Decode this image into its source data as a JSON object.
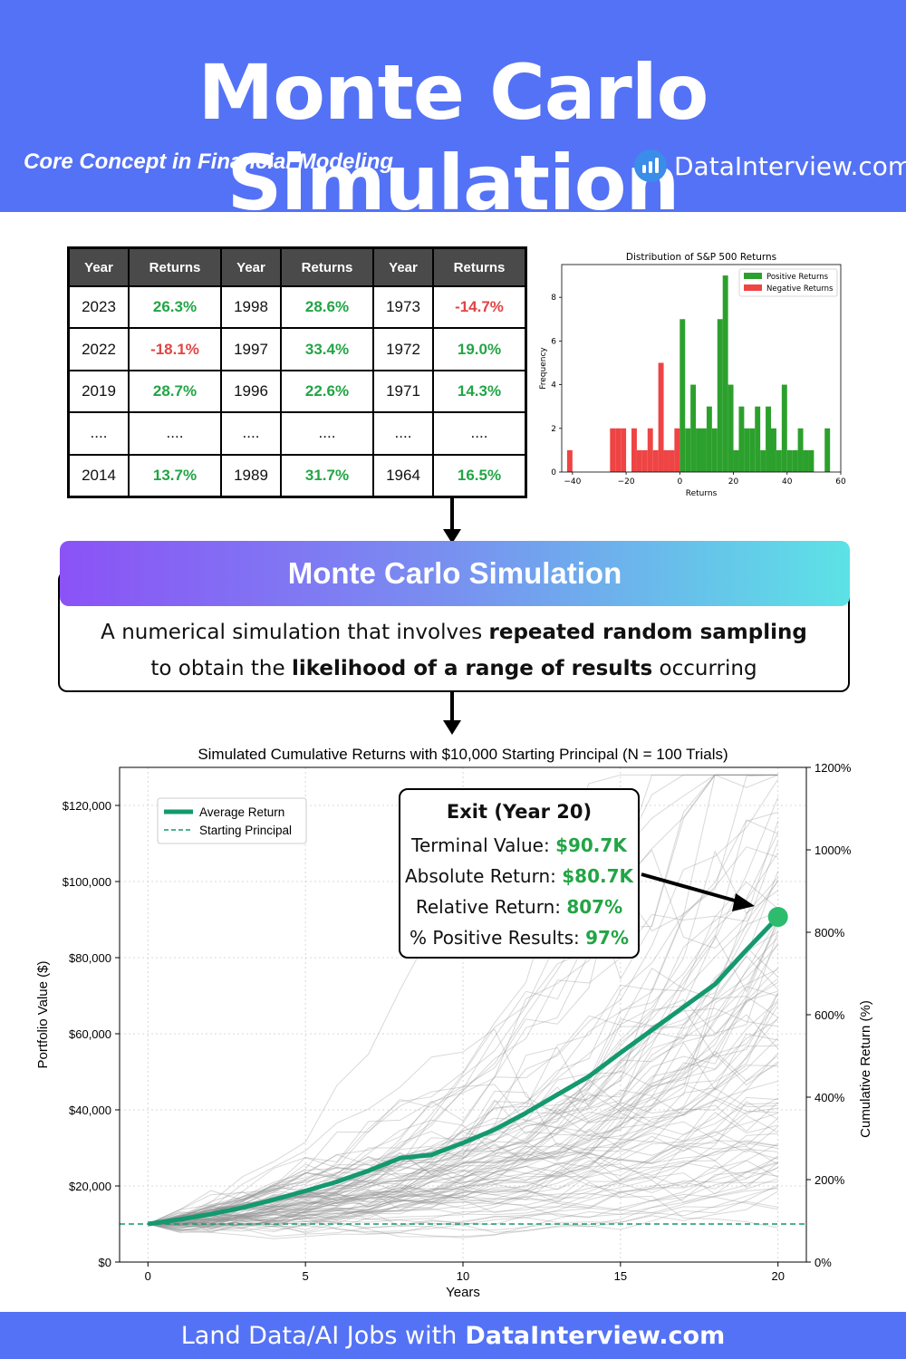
{
  "header": {
    "title": "Monte Carlo Simulation",
    "subtitle": "Core Concept in Financial Modeling",
    "brand": "DataInterview.com",
    "brand_logo_icon": "bar-chart-logo-icon",
    "background_color": "#5472f5"
  },
  "returns_table": {
    "headers": [
      "Year",
      "Returns",
      "Year",
      "Returns",
      "Year",
      "Returns"
    ],
    "rows": [
      [
        {
          "v": "2023"
        },
        {
          "v": "26.3%",
          "s": "pos"
        },
        {
          "v": "1998"
        },
        {
          "v": "28.6%",
          "s": "pos"
        },
        {
          "v": "1973"
        },
        {
          "v": "-14.7%",
          "s": "neg"
        }
      ],
      [
        {
          "v": "2022"
        },
        {
          "v": "-18.1%",
          "s": "neg"
        },
        {
          "v": "1997"
        },
        {
          "v": "33.4%",
          "s": "pos"
        },
        {
          "v": "1972"
        },
        {
          "v": "19.0%",
          "s": "pos"
        }
      ],
      [
        {
          "v": "2019"
        },
        {
          "v": "28.7%",
          "s": "pos"
        },
        {
          "v": "1996"
        },
        {
          "v": "22.6%",
          "s": "pos"
        },
        {
          "v": "1971"
        },
        {
          "v": "14.3%",
          "s": "pos"
        }
      ],
      [
        {
          "v": "...."
        },
        {
          "v": "...."
        },
        {
          "v": "...."
        },
        {
          "v": "...."
        },
        {
          "v": "...."
        },
        {
          "v": "...."
        }
      ],
      [
        {
          "v": "2014"
        },
        {
          "v": "13.7%",
          "s": "pos"
        },
        {
          "v": "1989"
        },
        {
          "v": "31.7%",
          "s": "pos"
        },
        {
          "v": "1964"
        },
        {
          "v": "16.5%",
          "s": "pos"
        }
      ]
    ],
    "positive_color": "#22a545",
    "negative_color": "#e14444"
  },
  "definition": {
    "banner_title": "Monte Carlo Simulation",
    "line1_before": "A numerical simulation that involves ",
    "line1_bold": "repeated random sampling",
    "line2_before": "to obtain the ",
    "line2_bold": "likelihood of a range of results",
    "line2_after": " occurring"
  },
  "callout": {
    "title": "Exit (Year 20)",
    "terminal_label": "Terminal Value:",
    "terminal_value": "$90.7K",
    "absolute_label": "Absolute Return:",
    "absolute_value": "$80.7K",
    "relative_label": "Relative Return:",
    "relative_value": "807%",
    "positive_label": "% Positive Results:",
    "positive_value": "97%"
  },
  "footer": {
    "text_before": "Land Data/AI Jobs with",
    "text_bold": "DataInterview.com"
  },
  "chart_data": [
    {
      "type": "bar",
      "title": "Distribution of S&P 500 Returns",
      "xlabel": "Returns",
      "ylabel": "Frequency",
      "xlim": [
        -44,
        60
      ],
      "ylim": [
        0,
        9.5
      ],
      "xticks": [
        -40,
        -20,
        0,
        20,
        40,
        60
      ],
      "yticks": [
        0,
        2,
        4,
        6,
        8
      ],
      "legend_position": "top-right",
      "series": [
        {
          "name": "Positive Returns",
          "color": "#2ca02c",
          "bins": [
            [
              0,
              2,
              7
            ],
            [
              2,
              4,
              2
            ],
            [
              4,
              6,
              4
            ],
            [
              6,
              8,
              2
            ],
            [
              8,
              10,
              2
            ],
            [
              10,
              12,
              3
            ],
            [
              12,
              14,
              2
            ],
            [
              14,
              16,
              7
            ],
            [
              16,
              18,
              9
            ],
            [
              18,
              20,
              4
            ],
            [
              20,
              22,
              1
            ],
            [
              22,
              24,
              3
            ],
            [
              24,
              26,
              2
            ],
            [
              26,
              28,
              2
            ],
            [
              28,
              30,
              3
            ],
            [
              30,
              32,
              1
            ],
            [
              32,
              34,
              3
            ],
            [
              34,
              36,
              2
            ],
            [
              36,
              38,
              1
            ],
            [
              38,
              40,
              4
            ],
            [
              40,
              42,
              1
            ],
            [
              42,
              44,
              1
            ],
            [
              44,
              46,
              2
            ],
            [
              46,
              48,
              1
            ],
            [
              48,
              50,
              1
            ],
            [
              54,
              56,
              2
            ]
          ]
        },
        {
          "name": "Negative Returns",
          "color": "#ee4444",
          "bins": [
            [
              -42,
              -40,
              1
            ],
            [
              -26,
              -24,
              2
            ],
            [
              -24,
              -22,
              2
            ],
            [
              -22,
              -20,
              2
            ],
            [
              -18,
              -16,
              2
            ],
            [
              -16,
              -14,
              1
            ],
            [
              -14,
              -12,
              1
            ],
            [
              -12,
              -10,
              2
            ],
            [
              -10,
              -8,
              1
            ],
            [
              -8,
              -6,
              5
            ],
            [
              -6,
              -4,
              1
            ],
            [
              -4,
              -2,
              1
            ],
            [
              -2,
              0,
              2
            ]
          ]
        }
      ]
    },
    {
      "type": "line",
      "title": "Simulated Cumulative Returns with $10,000 Starting Principal (N = 100 Trials)",
      "xlabel": "Years",
      "ylabel": "Portfolio Value ($)",
      "ylabel_right": "Cumulative Return (%)",
      "xlim": [
        -0.9,
        20.9
      ],
      "ylim": [
        0,
        130000
      ],
      "xticks": [
        0,
        5,
        10,
        15,
        20
      ],
      "yticks": [
        0,
        20000,
        40000,
        60000,
        80000,
        100000,
        120000
      ],
      "ytick_labels": [
        "$0",
        "$20,000",
        "$40,000",
        "$60,000",
        "$80,000",
        "$100,000",
        "$120,000"
      ],
      "yticks_right_labels": [
        "0%",
        "200%",
        "400%",
        "600%",
        "800%",
        "1000%",
        "1200%"
      ],
      "grid": true,
      "legend_position": "top-left",
      "n_trials": 100,
      "average_color": "#14996f",
      "series": [
        {
          "name": "Average Return",
          "x": [
            0,
            1,
            2,
            3,
            4,
            5,
            6,
            7,
            8,
            9,
            10,
            11,
            12,
            13,
            14,
            15,
            16,
            17,
            18,
            19,
            20
          ],
          "values": [
            10000,
            11200,
            12600,
            14300,
            16400,
            18700,
            21100,
            24000,
            27300,
            28200,
            31300,
            34800,
            39200,
            44000,
            48800,
            55000,
            61000,
            67000,
            73000,
            82000,
            90700
          ]
        },
        {
          "name": "Starting Principal",
          "x": [
            -0.9,
            20.9
          ],
          "values": [
            10000,
            10000
          ]
        }
      ]
    }
  ]
}
